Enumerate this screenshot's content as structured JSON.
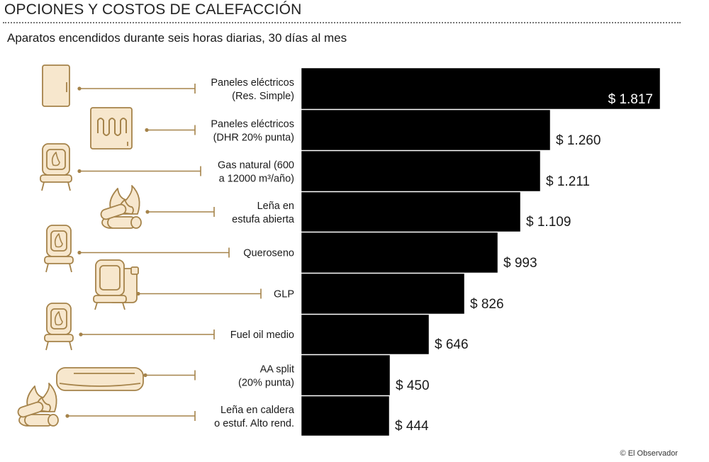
{
  "header": {
    "title": "OPCIONES Y COSTOS DE CALEFACCIÓN",
    "subtitle": "Aparatos encendidos durante seis horas diarias, 30 días al mes"
  },
  "credit": "© El Observador",
  "colors": {
    "bar": "#000000",
    "icon_fill": "#f7e7cd",
    "icon_stroke": "#a5834a",
    "leader": "#a5834a"
  },
  "chart_data": {
    "type": "bar",
    "orientation": "horizontal",
    "title": "OPCIONES Y COSTOS DE CALEFACCIÓN",
    "subtitle": "Aparatos encendidos durante seis horas diarias, 30 días al mes",
    "xlabel": "",
    "ylabel": "",
    "xlim": [
      0,
      1817
    ],
    "categories": [
      [
        "Paneles eléctricos",
        "(Res. Simple)"
      ],
      [
        "Paneles eléctricos",
        "(DHR 20% punta)"
      ],
      [
        "Gas natural (600",
        "a 12000 m³/año)"
      ],
      [
        "Leña en",
        "estufa abierta"
      ],
      [
        "Queroseno"
      ],
      [
        "GLP"
      ],
      [
        "Fuel oil medio"
      ],
      [
        "AA split",
        "(20% punta)"
      ],
      [
        "Leña en caldera",
        "o estuf. Alto rend."
      ]
    ],
    "values": [
      1817,
      1260,
      1211,
      1109,
      993,
      826,
      646,
      450,
      444
    ],
    "value_labels": [
      "$ 1.817",
      "$ 1.260",
      "$ 1.211",
      "$ 1.109",
      "$ 993",
      "$ 826",
      "$ 646",
      "$ 450",
      "$ 444"
    ],
    "icons": [
      "electric-panel-icon",
      "heater-panel-icon",
      "gas-stove-icon",
      "firewood-icon",
      "kerosene-stove-icon",
      "glp-heater-icon",
      "fuel-oil-stove-icon",
      "air-conditioner-icon",
      "firewood-boiler-icon"
    ]
  }
}
